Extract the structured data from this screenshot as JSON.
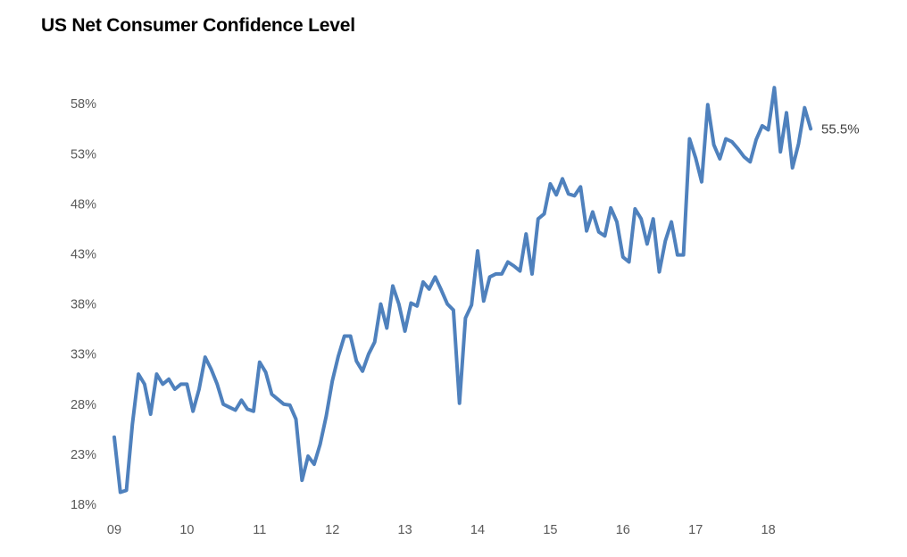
{
  "chart_data": {
    "type": "line",
    "title": "US Net Consumer Confidence Level",
    "xlabel": "",
    "ylabel": "",
    "y_unit": "%",
    "ylim": [
      18,
      60
    ],
    "y_ticks": [
      18,
      23,
      28,
      33,
      38,
      43,
      48,
      53,
      58
    ],
    "y_tick_labels": [
      "18%",
      "23%",
      "28%",
      "33%",
      "38%",
      "43%",
      "48%",
      "53%",
      "58%"
    ],
    "x_ticks": [
      2009,
      2010,
      2011,
      2012,
      2013,
      2014,
      2015,
      2016,
      2017,
      2018
    ],
    "x_tick_labels": [
      "09",
      "10",
      "11",
      "12",
      "13",
      "14",
      "15",
      "16",
      "17",
      "18"
    ],
    "grid": false,
    "legend": "none",
    "end_label": "55.5%",
    "series": [
      {
        "color": "#4f81bd",
        "x": [
          2009.0,
          2009.083,
          2009.167,
          2009.25,
          2009.333,
          2009.417,
          2009.5,
          2009.583,
          2009.667,
          2009.75,
          2009.833,
          2009.917,
          2010.0,
          2010.083,
          2010.167,
          2010.25,
          2010.333,
          2010.417,
          2010.5,
          2010.583,
          2010.667,
          2010.75,
          2010.833,
          2010.917,
          2011.0,
          2011.083,
          2011.167,
          2011.25,
          2011.333,
          2011.417,
          2011.5,
          2011.583,
          2011.667,
          2011.75,
          2011.833,
          2011.917,
          2012.0,
          2012.083,
          2012.167,
          2012.25,
          2012.333,
          2012.417,
          2012.5,
          2012.583,
          2012.667,
          2012.75,
          2012.833,
          2012.917,
          2013.0,
          2013.083,
          2013.167,
          2013.25,
          2013.333,
          2013.417,
          2013.5,
          2013.583,
          2013.667,
          2013.75,
          2013.833,
          2013.917,
          2014.0,
          2014.083,
          2014.167,
          2014.25,
          2014.333,
          2014.417,
          2014.5,
          2014.583,
          2014.667,
          2014.75,
          2014.833,
          2014.917,
          2015.0,
          2015.083,
          2015.167,
          2015.25,
          2015.333,
          2015.417,
          2015.5,
          2015.583,
          2015.667,
          2015.75,
          2015.833,
          2015.917,
          2016.0,
          2016.083,
          2016.167,
          2016.25,
          2016.333,
          2016.417,
          2016.5,
          2016.583,
          2016.667,
          2016.75,
          2016.833,
          2016.917,
          2017.0,
          2017.083,
          2017.167,
          2017.25,
          2017.333,
          2017.417,
          2017.5,
          2017.583,
          2017.667,
          2017.75,
          2017.833,
          2017.917,
          2018.0,
          2018.083,
          2018.167,
          2018.25,
          2018.333,
          2018.417,
          2018.5,
          2018.583
        ],
        "values": [
          24.7,
          19.2,
          19.4,
          26.0,
          31.0,
          30.0,
          27.0,
          31.0,
          30.0,
          30.5,
          29.5,
          30.0,
          30.0,
          27.3,
          29.5,
          32.7,
          31.5,
          30.0,
          28.0,
          27.7,
          27.4,
          28.4,
          27.5,
          27.3,
          32.2,
          31.2,
          29.0,
          28.5,
          28.0,
          27.9,
          26.5,
          20.4,
          22.8,
          22.0,
          24.0,
          26.8,
          30.3,
          32.8,
          34.8,
          34.8,
          32.3,
          31.3,
          33.0,
          34.2,
          38.0,
          35.6,
          39.8,
          38.0,
          35.3,
          38.1,
          37.8,
          40.2,
          39.5,
          40.7,
          39.4,
          38.0,
          37.4,
          28.1,
          36.6,
          37.9,
          43.3,
          38.3,
          40.7,
          41.0,
          41.0,
          42.2,
          41.8,
          41.3,
          45.0,
          41.0,
          46.5,
          47.0,
          50.0,
          48.9,
          50.5,
          49.0,
          48.8,
          49.7,
          45.3,
          47.2,
          45.2,
          44.8,
          47.6,
          46.2,
          42.7,
          42.2,
          47.5,
          46.5,
          44.0,
          46.5,
          41.2,
          44.3,
          46.2,
          42.9,
          42.9,
          54.5,
          52.6,
          50.2,
          57.9,
          53.9,
          52.5,
          54.5,
          54.2,
          53.5,
          52.7,
          52.2,
          54.4,
          55.8,
          55.4,
          59.6,
          53.2,
          57.1,
          51.6,
          54.0,
          57.6,
          55.5
        ]
      }
    ]
  }
}
